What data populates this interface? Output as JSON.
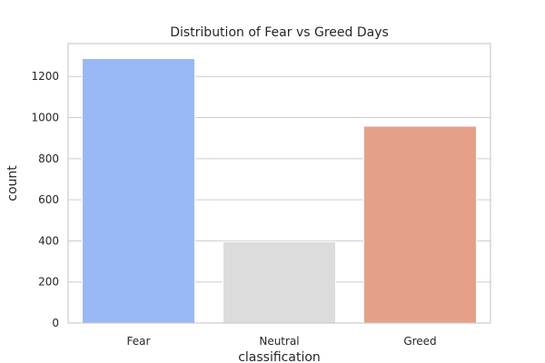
{
  "chart_data": {
    "type": "bar",
    "title": "Distribution of Fear vs Greed Days",
    "xlabel": "classification",
    "ylabel": "count",
    "categories": [
      "Fear",
      "Neutral",
      "Greed"
    ],
    "values": [
      1287,
      396,
      958
    ],
    "colors": [
      "#9ab8f5",
      "#dcdcdc",
      "#e5a089"
    ],
    "yticks": [
      0,
      200,
      400,
      600,
      800,
      1000,
      1200
    ],
    "ylim": [
      0,
      1360
    ],
    "grid": "horizontal",
    "background": "#ffffff",
    "gridColor": "#cccccc",
    "spineColor": "#cccccc"
  }
}
